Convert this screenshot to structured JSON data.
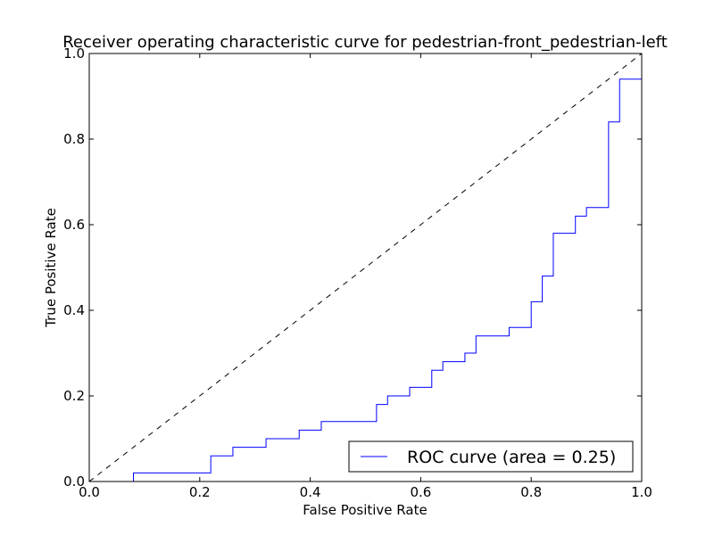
{
  "chart_data": {
    "type": "line",
    "title": "Receiver operating characteristic curve for pedestrian-front_pedestrian-left",
    "xlabel": "False Positive Rate",
    "ylabel": "True Positive Rate",
    "xlim": [
      0.0,
      1.0
    ],
    "ylim": [
      0.0,
      1.0
    ],
    "xticks": [
      "0.0",
      "0.2",
      "0.4",
      "0.6",
      "0.8",
      "1.0"
    ],
    "yticks": [
      "0.0",
      "0.2",
      "0.4",
      "0.6",
      "0.8",
      "1.0"
    ],
    "grid": false,
    "legend": {
      "position": "lower-right",
      "entries": [
        "ROC curve (area = 0.25)"
      ]
    },
    "series": [
      {
        "name": "ROC curve (area = 0.25)",
        "color": "#0000ff",
        "style": "step",
        "x": [
          0.0,
          0.08,
          0.08,
          0.22,
          0.22,
          0.26,
          0.26,
          0.32,
          0.32,
          0.38,
          0.38,
          0.42,
          0.42,
          0.52,
          0.52,
          0.54,
          0.54,
          0.58,
          0.58,
          0.62,
          0.62,
          0.64,
          0.64,
          0.68,
          0.68,
          0.7,
          0.7,
          0.76,
          0.76,
          0.8,
          0.8,
          0.82,
          0.82,
          0.84,
          0.84,
          0.88,
          0.88,
          0.9,
          0.9,
          0.94,
          0.94,
          0.96,
          0.96,
          1.0
        ],
        "y": [
          0.0,
          0.0,
          0.02,
          0.02,
          0.06,
          0.06,
          0.08,
          0.08,
          0.1,
          0.1,
          0.12,
          0.12,
          0.14,
          0.14,
          0.18,
          0.18,
          0.2,
          0.2,
          0.22,
          0.22,
          0.26,
          0.26,
          0.28,
          0.28,
          0.3,
          0.3,
          0.34,
          0.34,
          0.36,
          0.36,
          0.42,
          0.42,
          0.48,
          0.48,
          0.58,
          0.58,
          0.62,
          0.62,
          0.64,
          0.64,
          0.84,
          0.84,
          0.94,
          0.94
        ]
      },
      {
        "name": "",
        "color": "#000000",
        "style": "dashed",
        "x": [
          0.0,
          1.0
        ],
        "y": [
          0.0,
          1.0
        ]
      }
    ]
  }
}
